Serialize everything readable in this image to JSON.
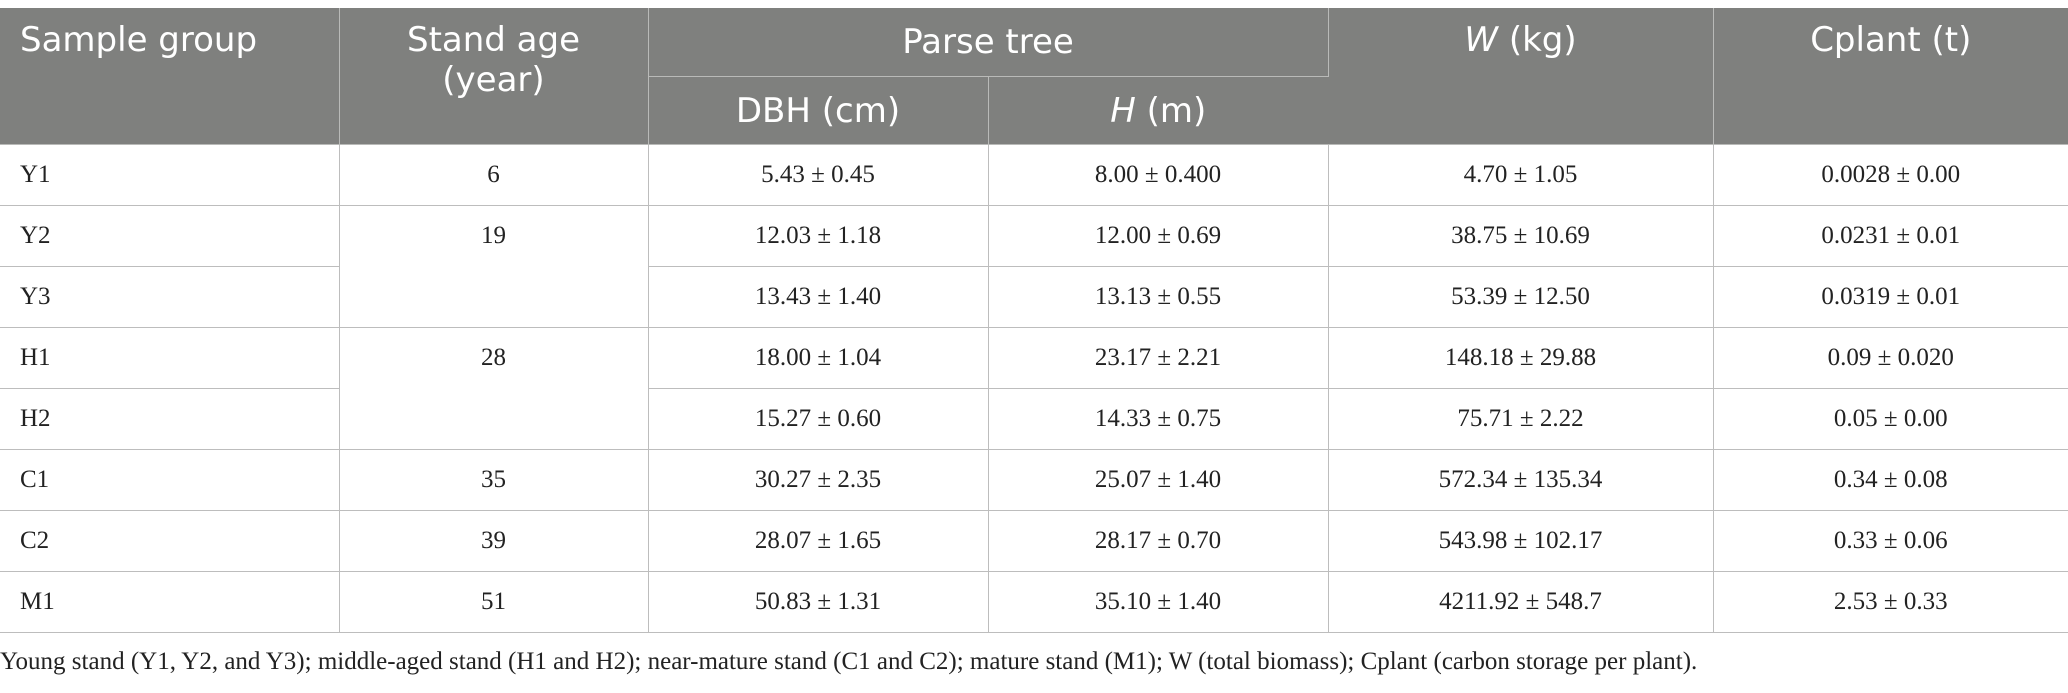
{
  "headers": {
    "sample_group": "Sample group",
    "stand_age": "Stand age (year)",
    "parse_tree": "Parse tree",
    "dbh": "DBH (cm)",
    "h_symbol": "H",
    "h_unit": " (m)",
    "w_symbol": "W",
    "w_unit": " (kg)",
    "cplant": "Cplant (t)"
  },
  "rows": [
    {
      "group": "Y1",
      "age": "6",
      "dbh": "5.43 ± 0.45",
      "h": "8.00 ± 0.400",
      "w": "4.70 ± 1.05",
      "cplant": "0.0028 ± 0.00"
    },
    {
      "group": "Y2",
      "age": "19",
      "dbh": "12.03 ± 1.18",
      "h": "12.00 ± 0.69",
      "w": "38.75 ± 10.69",
      "cplant": "0.0231 ± 0.01"
    },
    {
      "group": "Y3",
      "age": "",
      "dbh": "13.43 ± 1.40",
      "h": "13.13 ± 0.55",
      "w": "53.39 ± 12.50",
      "cplant": "0.0319 ± 0.01"
    },
    {
      "group": "H1",
      "age": "28",
      "dbh": "18.00 ± 1.04",
      "h": "23.17 ± 2.21",
      "w": "148.18 ± 29.88",
      "cplant": "0.09 ± 0.020"
    },
    {
      "group": "H2",
      "age": "",
      "dbh": "15.27 ± 0.60",
      "h": "14.33 ± 0.75",
      "w": "75.71 ± 2.22",
      "cplant": "0.05 ± 0.00"
    },
    {
      "group": "C1",
      "age": "35",
      "dbh": "30.27 ± 2.35",
      "h": "25.07 ± 1.40",
      "w": "572.34 ± 135.34",
      "cplant": "0.34 ± 0.08"
    },
    {
      "group": "C2",
      "age": "39",
      "dbh": "28.07 ± 1.65",
      "h": "28.17 ± 0.70",
      "w": "543.98 ± 102.17",
      "cplant": "0.33 ± 0.06"
    },
    {
      "group": "M1",
      "age": "51",
      "dbh": "50.83 ± 1.31",
      "h": "35.10 ± 1.40",
      "w": "4211.92 ± 548.7",
      "cplant": "2.53 ± 0.33"
    }
  ],
  "footnote": "Young stand (Y1, Y2, and Y3); middle-aged stand (H1 and H2); near-mature stand (C1 and C2); mature stand (M1); W (total biomass); Cplant (carbon storage per plant)."
}
